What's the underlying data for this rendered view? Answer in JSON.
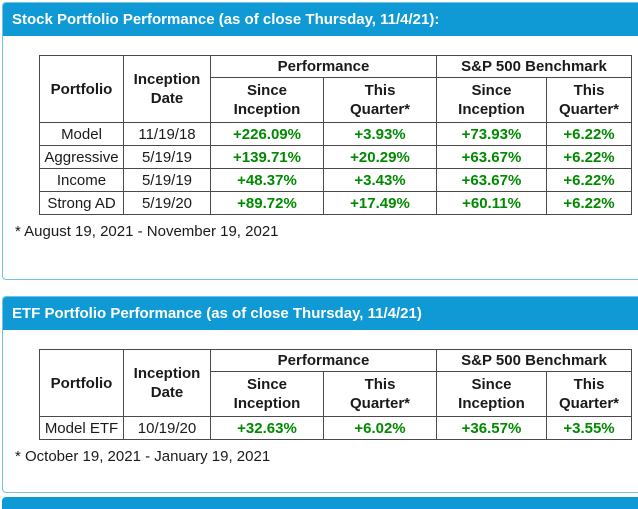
{
  "colors": {
    "section_header_bg": "#0f9ad5",
    "section_header_text": "#ffffff",
    "panel_border": "#74c2e6",
    "table_border": "#4a4a4a",
    "positive_value_green": "#008a00",
    "body_text": "#1a1a1a"
  },
  "stock_section": {
    "title": "Stock Portfolio Performance (as of close Thursday, 11/4/21):",
    "footnote": "* August 19, 2021 - November 19, 2021",
    "table": {
      "headers": {
        "portfolio": "Portfolio",
        "inception_date_line1": "Inception",
        "inception_date_line2": "Date",
        "performance_group": "Performance",
        "benchmark_group": "S&P 500 Benchmark",
        "since_inception_line1": "Since",
        "since_inception_line2": "Inception",
        "this_quarter_line1": "This",
        "this_quarter_line2": "Quarter*"
      },
      "rows": [
        {
          "portfolio": "Model",
          "inception_date": "11/19/18",
          "performance_since_inception": "+226.09%",
          "performance_this_quarter": "+3.93%",
          "benchmark_since_inception": "+73.93%",
          "benchmark_this_quarter": "+6.22%"
        },
        {
          "portfolio": "Aggressive",
          "inception_date": "5/19/19",
          "performance_since_inception": "+139.71%",
          "performance_this_quarter": "+20.29%",
          "benchmark_since_inception": "+63.67%",
          "benchmark_this_quarter": "+6.22%"
        },
        {
          "portfolio": "Income",
          "inception_date": "5/19/19",
          "performance_since_inception": "+48.37%",
          "performance_this_quarter": "+3.43%",
          "benchmark_since_inception": "+63.67%",
          "benchmark_this_quarter": "+6.22%"
        },
        {
          "portfolio": "Strong AD",
          "inception_date": "5/19/20",
          "performance_since_inception": "+89.72%",
          "performance_this_quarter": "+17.49%",
          "benchmark_since_inception": "+60.11%",
          "benchmark_this_quarter": "+6.22%"
        }
      ]
    }
  },
  "etf_section": {
    "title": "ETF Portfolio Performance (as of close Thursday, 11/4/21)",
    "footnote": "* October 19, 2021 - January 19, 2021",
    "table": {
      "headers": {
        "portfolio": "Portfolio",
        "inception_date_line1": "Inception",
        "inception_date_line2": "Date",
        "performance_group": "Performance",
        "benchmark_group": "S&P 500 Benchmark",
        "since_inception_line1": "Since",
        "since_inception_line2": "Inception",
        "this_quarter_line1": "This",
        "this_quarter_line2": "Quarter*"
      },
      "rows": [
        {
          "portfolio": "Model ETF",
          "inception_date": "10/19/20",
          "performance_since_inception": "+32.63%",
          "performance_this_quarter": "+6.02%",
          "benchmark_since_inception": "+36.57%",
          "benchmark_this_quarter": "+3.55%"
        }
      ]
    }
  }
}
